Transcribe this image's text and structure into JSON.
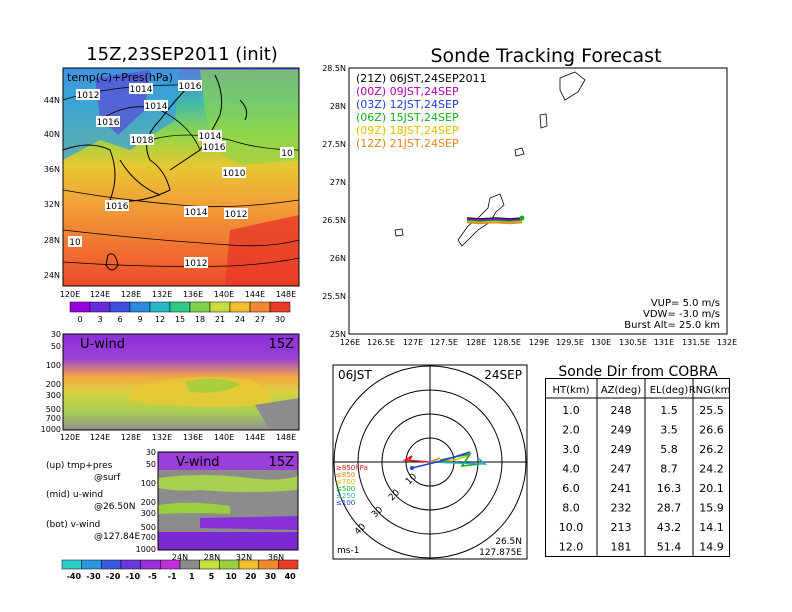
{
  "left_map": {
    "title": "15Z,23SEP2011  (init)",
    "label": "temp(C)+Pres(hPa)",
    "lon_ticks": [
      "120E",
      "124E",
      "128E",
      "132E",
      "136E",
      "140E",
      "144E",
      "148E"
    ],
    "lat_ticks": [
      "44N",
      "40N",
      "36N",
      "32N",
      "28N",
      "24N"
    ],
    "isobar_labels": [
      "1016",
      "1014",
      "1012",
      "1014",
      "1016",
      "1018",
      "1014",
      "1016",
      "10",
      "1010",
      "1016",
      "1014",
      "1012",
      "1012",
      "10"
    ],
    "colorbar": [
      "0",
      "3",
      "6",
      "9",
      "12",
      "15",
      "18",
      "21",
      "24",
      "27",
      "30"
    ],
    "colors": [
      "#9a00e0",
      "#6b2bd8",
      "#3d4fe0",
      "#2a8be0",
      "#27b6c4",
      "#2fc98a",
      "#7fd34a",
      "#c8dc3c",
      "#f0c030",
      "#f08a30",
      "#e83a28"
    ]
  },
  "uwind": {
    "label": "U-wind",
    "time": "15Z",
    "lev_ticks": [
      "30",
      "50",
      "100",
      "200",
      "300",
      "500",
      "700",
      "1000"
    ],
    "lon_ticks": [
      "120E",
      "124E",
      "128E",
      "132E",
      "136E",
      "140E",
      "144E",
      "148E"
    ]
  },
  "vwind": {
    "label": "V-wind",
    "time": "15Z",
    "lev_ticks": [
      "30",
      "50",
      "100",
      "200",
      "300",
      "500",
      "700",
      "1000"
    ],
    "lat_ticks": [
      "24N",
      "28N",
      "32N",
      "36N"
    ]
  },
  "legend_notes": [
    "(up) tmp+pres",
    "@surf",
    "(mid) u-wind",
    "@26.50N",
    "(bot) v-wind",
    "@127.84E"
  ],
  "wind_colorbar": {
    "labels": [
      "-40",
      "-30",
      "-20",
      "-10",
      "-5",
      "-1",
      "1",
      "5",
      "10",
      "20",
      "30",
      "40"
    ],
    "colors": [
      "#2ad0c8",
      "#2a96e0",
      "#3a5ae0",
      "#6a3ad8",
      "#9a30d8",
      "#c030d8",
      "#8c8c8c",
      "#c8dc3c",
      "#9ad040",
      "#f0c030",
      "#f08a30",
      "#e83a28"
    ]
  },
  "track": {
    "title": "Sonde Tracking Forecast",
    "lat_ticks": [
      "28.5N",
      "28N",
      "27.5N",
      "27N",
      "26.5N",
      "26N",
      "25.5N",
      "25N"
    ],
    "lon_ticks": [
      "126E",
      "126.5E",
      "127E",
      "127.5E",
      "128E",
      "128.5E",
      "129E",
      "129.5E",
      "130E",
      "130.5E",
      "131E",
      "131.5E",
      "132E"
    ],
    "legend": [
      {
        "label": "(21Z)  06JST,24SEP2011",
        "color": "#000000"
      },
      {
        "label": "(00Z)  09JST,24SEP",
        "color": "#b000b0"
      },
      {
        "label": "(03Z)  12JST,24SEP",
        "color": "#2040e0"
      },
      {
        "label": "(06Z)  15JST,24SEP",
        "color": "#10b020"
      },
      {
        "label": "(09Z)  18JST,24SEP",
        "color": "#e0c000"
      },
      {
        "label": "(12Z)  21JST,24SEP",
        "color": "#f08020"
      }
    ],
    "params": [
      "VUP=  5.0  m/s",
      "VDW= -3.0  m/s",
      "Burst Alt=  25.0  km"
    ]
  },
  "polar": {
    "time": "06JST",
    "date": "24SEP",
    "ring_labels": [
      "10",
      "20",
      "30",
      "40"
    ],
    "levels": [
      {
        "label": "≥850hPa",
        "color": "#e02020"
      },
      {
        "label": "≤850",
        "color": "#f08020"
      },
      {
        "label": "≤700",
        "color": "#e0c000"
      },
      {
        "label": "≤500",
        "color": "#10b020"
      },
      {
        "label": "≤250",
        "color": "#20b0c0"
      },
      {
        "label": "≤100",
        "color": "#2040e0"
      }
    ],
    "unit": "ms-1",
    "loc_lat": "26.5N",
    "loc_lon": "127.875E"
  },
  "table": {
    "title": "Sonde Dir from COBRA",
    "headers": [
      "HT(km)",
      "AZ(deg)",
      "EL(deg)",
      "RNG(km)"
    ],
    "rows": [
      [
        "1.0",
        "248",
        "1.5",
        "25.5"
      ],
      [
        "2.0",
        "249",
        "3.5",
        "26.6"
      ],
      [
        "3.0",
        "249",
        "5.8",
        "26.2"
      ],
      [
        "4.0",
        "247",
        "8.7",
        "24.2"
      ],
      [
        "6.0",
        "241",
        "16.3",
        "20.1"
      ],
      [
        "8.0",
        "232",
        "28.7",
        "15.9"
      ],
      [
        "10.0",
        "213",
        "43.2",
        "14.1"
      ],
      [
        "12.0",
        "181",
        "51.4",
        "14.9"
      ]
    ]
  },
  "chart_data": [
    {
      "type": "heatmap",
      "title": "15Z,23SEP2011  (init)",
      "subtitle": "temp(C)+Pres(hPa)",
      "colorbar_ticks": [
        0,
        3,
        6,
        9,
        12,
        15,
        18,
        21,
        24,
        27,
        30
      ]
    },
    {
      "type": "heatmap",
      "title": "U-wind",
      "subtitle": "15Z",
      "colorbar_ticks": [
        -40,
        -30,
        -20,
        -10,
        -5,
        -1,
        1,
        5,
        10,
        20,
        30,
        40
      ]
    },
    {
      "type": "heatmap",
      "title": "V-wind",
      "subtitle": "15Z",
      "colorbar_ticks": [
        -40,
        -30,
        -20,
        -10,
        -5,
        -1,
        1,
        5,
        10,
        20,
        30,
        40
      ]
    },
    {
      "type": "line",
      "title": "Sonde Tracking Forecast",
      "xlim": [
        126,
        132
      ],
      "ylim": [
        25,
        28.5
      ]
    },
    {
      "type": "table",
      "title": "Sonde Dir from COBRA",
      "columns": [
        "HT(km)",
        "AZ(deg)",
        "EL(deg)",
        "RNG(km)"
      ],
      "rows": [
        [
          1.0,
          248,
          1.5,
          25.5
        ],
        [
          2.0,
          249,
          3.5,
          26.6
        ],
        [
          3.0,
          249,
          5.8,
          26.2
        ],
        [
          4.0,
          247,
          8.7,
          24.2
        ],
        [
          6.0,
          241,
          16.3,
          20.1
        ],
        [
          8.0,
          232,
          28.7,
          15.9
        ],
        [
          10.0,
          213,
          43.2,
          14.1
        ],
        [
          12.0,
          181,
          51.4,
          14.9
        ]
      ]
    }
  ]
}
